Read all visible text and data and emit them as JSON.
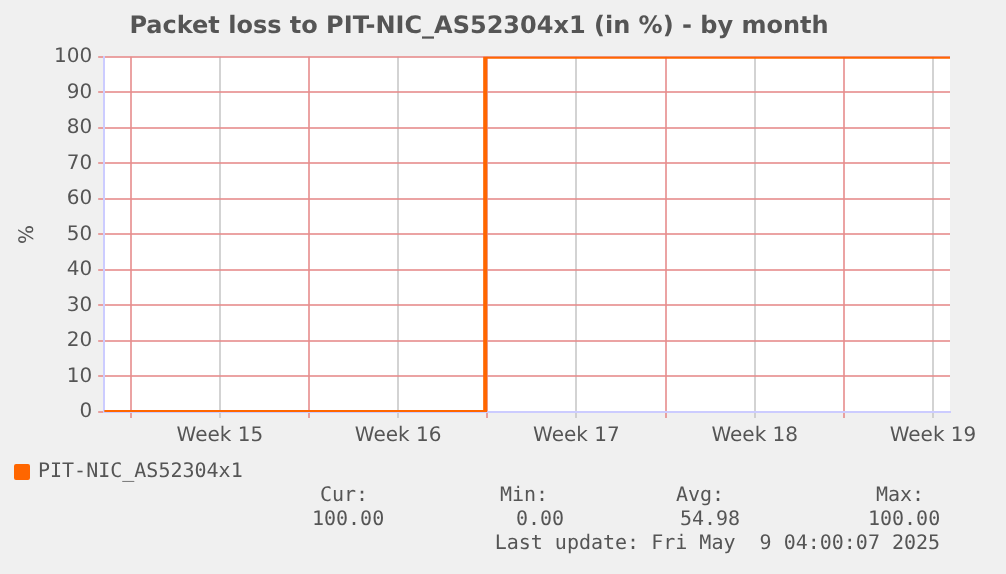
{
  "chart_data": {
    "type": "step",
    "title": "Packet loss to PIT-NIC_AS52304x1 (in %) - by month",
    "ylabel": "%",
    "x": [
      "2025-04-05T23:00",
      "2025-04-20T22:00",
      "2025-05-09T04:00"
    ],
    "series": [
      {
        "name": "PIT-NIC_AS52304x1",
        "color": "#ff6600",
        "values": [
          0,
          100,
          100
        ]
      }
    ],
    "xlim": [
      "2025-04-05T23:00",
      "2025-05-09T04:00"
    ],
    "xticks": [
      {
        "value": "2025-04-07",
        "label": null
      },
      {
        "value": "2025-04-10T12:00",
        "label": "Week 15"
      },
      {
        "value": "2025-04-14",
        "label": null
      },
      {
        "value": "2025-04-17T12:00",
        "label": "Week 16"
      },
      {
        "value": "2025-04-21",
        "label": null
      },
      {
        "value": "2025-04-24T12:00",
        "label": "Week 17"
      },
      {
        "value": "2025-04-28",
        "label": null
      },
      {
        "value": "2025-05-01T12:00",
        "label": "Week 18"
      },
      {
        "value": "2025-05-05",
        "label": null
      },
      {
        "value": "2025-05-08T12:00",
        "label": "Week 19"
      }
    ],
    "ylim": [
      0,
      100
    ],
    "yticks": [
      0,
      10,
      20,
      30,
      40,
      50,
      60,
      70,
      80,
      90,
      100
    ],
    "grid": true,
    "legend": "bottom left",
    "marker": "none",
    "line_style": "solid",
    "annotations": [
      "Cur:",
      "100.00",
      "Min:",
      "0.00",
      "Avg:",
      "54.98",
      "Max:",
      "100.00",
      "Last update: Fri May  9 04:00:07 2025"
    ]
  }
}
